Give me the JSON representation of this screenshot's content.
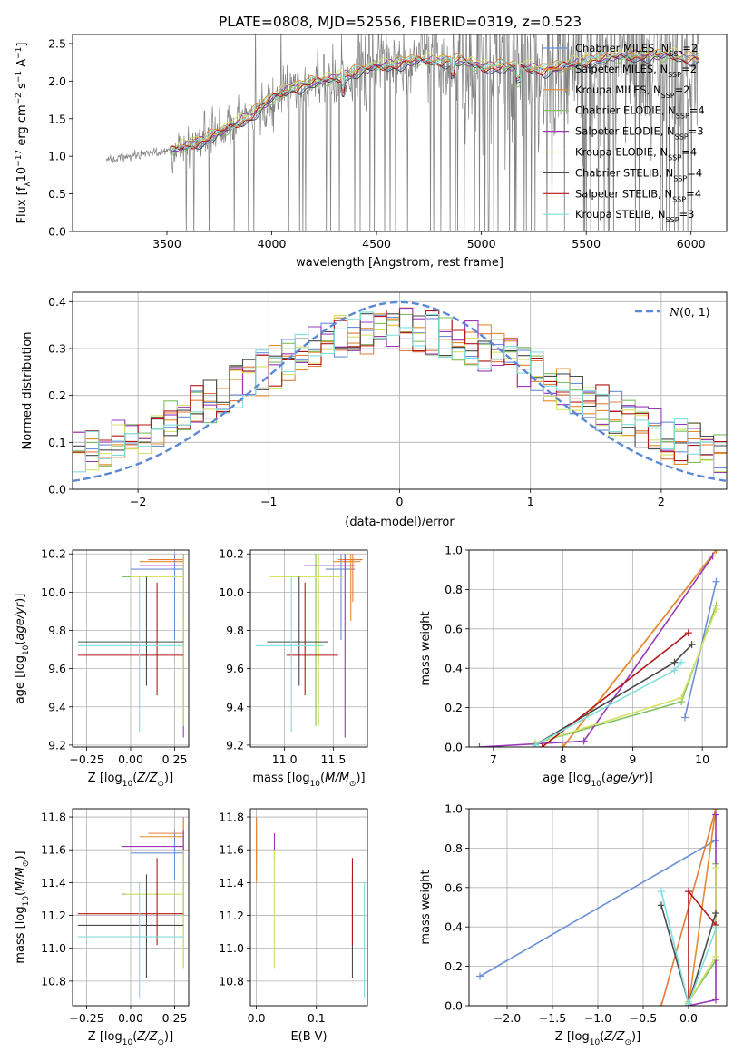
{
  "figure": {
    "title": "PLATE=0808, MJD=52556, FIBERID=0319, z=0.523"
  },
  "models": [
    {
      "name": "Chabrier MILES, N_SSP=2",
      "lib": "Chabrier MILES, N",
      "n": "=2",
      "color": "#6a8fd6"
    },
    {
      "name": "Salpeter MILES, N_SSP=2",
      "lib": "Salpeter MILES, N",
      "n": "=2",
      "color": "#e47b3c"
    },
    {
      "name": "Kroupa MILES, N_SSP=2",
      "lib": "Kroupa MILES, N",
      "n": "=2",
      "color": "#e48b2c"
    },
    {
      "name": "Chabrier ELODIE, N_SSP=4",
      "lib": "Chabrier ELODIE, N",
      "n": "=4",
      "color": "#7fbf5f"
    },
    {
      "name": "Salpeter ELODIE, N_SSP=3",
      "lib": "Salpeter ELODIE, N",
      "n": "=3",
      "color": "#9a38b8"
    },
    {
      "name": "Kroupa ELODIE, N_SSP=4",
      "lib": "Kroupa ELODIE, N",
      "n": "=4",
      "color": "#d6e26a"
    },
    {
      "name": "Chabrier STELIB, N_SSP=4",
      "lib": "Chabrier STELIB, N",
      "n": "=4",
      "color": "#4a4a4a"
    },
    {
      "name": "Salpeter STELIB, N_SSP=4",
      "lib": "Salpeter STELIB, N",
      "n": "=4",
      "color": "#b01818"
    },
    {
      "name": "Kroupa STELIB, N_SSP=3",
      "lib": "Kroupa STELIB, N",
      "n": "=3",
      "color": "#80dede"
    }
  ],
  "legend_sub": "SSP",
  "chart_data": [
    {
      "id": "spectrum",
      "type": "line",
      "xlabel": "wavelength [Angstrom, rest frame]",
      "ylabel": "Flux [f_λ 10^-17 erg cm^-2 s^-1 A^-1]",
      "xlim": [
        3050,
        6170
      ],
      "ylim": [
        0,
        2.62
      ],
      "xticks": [
        3500,
        4000,
        4500,
        5000,
        5500,
        6000
      ],
      "yticks": [
        0.0,
        0.5,
        1.0,
        1.5,
        2.0,
        2.5
      ],
      "data_color": "#808080",
      "data_range": [
        3210,
        6040
      ],
      "model_start": 3520,
      "continuum_points": [
        [
          3210,
          0.95
        ],
        [
          3400,
          1.03
        ],
        [
          3520,
          1.08
        ],
        [
          3700,
          1.25
        ],
        [
          3900,
          1.55
        ],
        [
          4000,
          1.78
        ],
        [
          4100,
          1.92
        ],
        [
          4300,
          2.05
        ],
        [
          4500,
          2.2
        ],
        [
          4700,
          2.28
        ],
        [
          4900,
          2.28
        ],
        [
          5000,
          2.2
        ],
        [
          5200,
          2.2
        ],
        [
          5300,
          2.15
        ],
        [
          5500,
          2.28
        ],
        [
          5700,
          2.35
        ],
        [
          5900,
          2.35
        ],
        [
          6040,
          2.3
        ]
      ],
      "grid": false,
      "legend": "top-right"
    },
    {
      "id": "residuals",
      "type": "step",
      "xlabel": "(data-model)/error",
      "ylabel": "Normed distribution",
      "xlim": [
        -2.5,
        2.5
      ],
      "ylim": [
        0,
        0.42
      ],
      "xticks": [
        -2,
        -1,
        0,
        1,
        2
      ],
      "yticks": [
        0.0,
        0.1,
        0.2,
        0.3,
        0.4
      ],
      "bins": 50,
      "gaussian": {
        "label": "N(0,1)",
        "mean": 0,
        "sigma": 1,
        "color": "#5b88d6"
      },
      "grid": true,
      "legend": "top-right"
    },
    {
      "id": "age_vs_Z",
      "type": "errorbar",
      "xlabel": "Z [log10(Z/Z⊙)]",
      "ylabel": "age  [log10(age/yr)]",
      "xlim": [
        -0.33,
        0.33
      ],
      "ylim": [
        9.19,
        10.22
      ],
      "xticks": [
        -0.25,
        0.0,
        0.25
      ],
      "xticklabels": [
        "−0.25",
        "0.00",
        "0.25"
      ],
      "yticks": [
        9.2,
        9.4,
        9.6,
        9.8,
        10.0,
        10.2
      ],
      "points": [
        {
          "model": 0,
          "x": 0.25,
          "y": 10.12,
          "xmin": 0.0,
          "xmax": 0.3,
          "ymin": 9.75,
          "ymax": 10.2
        },
        {
          "model": 1,
          "x": 0.3,
          "y": 10.17,
          "xmin": 0.1,
          "xmax": 0.3,
          "ymin": 9.95,
          "ymax": 10.2
        },
        {
          "model": 2,
          "x": 0.3,
          "y": 10.16,
          "xmin": 0.05,
          "xmax": 0.3,
          "ymin": 9.85,
          "ymax": 10.2
        },
        {
          "model": 3,
          "x": 0.3,
          "y": 10.08,
          "xmin": -0.05,
          "xmax": 0.3,
          "ymin": 9.3,
          "ymax": 10.2
        },
        {
          "model": 4,
          "x": 0.3,
          "y": 10.14,
          "xmin": 0.05,
          "xmax": 0.3,
          "ymin": 9.24,
          "ymax": 10.2
        },
        {
          "model": 5,
          "x": 0.3,
          "y": 10.08,
          "xmin": 0.0,
          "xmax": 0.3,
          "ymin": 9.3,
          "ymax": 10.2
        },
        {
          "model": 6,
          "x": 0.09,
          "y": 9.74,
          "xmin": -0.3,
          "xmax": 0.3,
          "ymin": 9.51,
          "ymax": 10.08
        },
        {
          "model": 7,
          "x": 0.15,
          "y": 9.67,
          "xmin": -0.3,
          "xmax": 0.3,
          "ymin": 9.46,
          "ymax": 10.05
        },
        {
          "model": 8,
          "x": 0.05,
          "y": 9.72,
          "xmin": -0.3,
          "xmax": 0.3,
          "ymin": 9.27,
          "ymax": 10.08
        }
      ],
      "grid": true
    },
    {
      "id": "age_vs_mass",
      "type": "errorbar",
      "xlabel": "mass [log10(M/M⊙)]",
      "ylabel": "",
      "xlim": [
        10.65,
        11.85
      ],
      "ylim": [
        9.19,
        10.22
      ],
      "xticks": [
        11.0,
        11.5
      ],
      "yticks": [
        9.2,
        9.4,
        9.6,
        9.8,
        10.0,
        10.2
      ],
      "points": [
        {
          "model": 0,
          "x": 11.58,
          "y": 10.12,
          "xmin": 11.42,
          "xmax": 11.72,
          "ymin": 9.75,
          "ymax": 10.2
        },
        {
          "model": 1,
          "x": 11.7,
          "y": 10.17,
          "xmin": 11.55,
          "xmax": 11.8,
          "ymin": 9.95,
          "ymax": 10.2
        },
        {
          "model": 2,
          "x": 11.68,
          "y": 10.16,
          "xmin": 11.5,
          "xmax": 11.78,
          "ymin": 9.85,
          "ymax": 10.2
        },
        {
          "model": 3,
          "x": 11.32,
          "y": 10.08,
          "xmin": 10.85,
          "xmax": 11.6,
          "ymin": 9.3,
          "ymax": 10.2
        },
        {
          "model": 4,
          "x": 11.62,
          "y": 10.14,
          "xmin": 11.2,
          "xmax": 11.72,
          "ymin": 9.24,
          "ymax": 10.2
        },
        {
          "model": 5,
          "x": 11.35,
          "y": 10.08,
          "xmin": 10.85,
          "xmax": 11.6,
          "ymin": 9.3,
          "ymax": 10.2
        },
        {
          "model": 6,
          "x": 11.15,
          "y": 9.74,
          "xmin": 10.82,
          "xmax": 11.45,
          "ymin": 9.51,
          "ymax": 10.08
        },
        {
          "model": 7,
          "x": 11.21,
          "y": 9.67,
          "xmin": 11.02,
          "xmax": 11.55,
          "ymin": 9.46,
          "ymax": 10.05
        },
        {
          "model": 8,
          "x": 11.07,
          "y": 9.72,
          "xmin": 10.7,
          "xmax": 11.4,
          "ymin": 9.27,
          "ymax": 10.08
        }
      ],
      "grid": true
    },
    {
      "id": "mass_weight_vs_age",
      "type": "line",
      "xlabel": "age  [log10(age/yr)]",
      "ylabel": "mass weight",
      "xlim": [
        6.65,
        10.35
      ],
      "ylim": [
        0,
        1.0
      ],
      "xticks": [
        7,
        8,
        9,
        10
      ],
      "yticks": [
        0.0,
        0.2,
        0.4,
        0.6,
        0.8,
        1.0
      ],
      "series": [
        {
          "model": 0,
          "points": [
            [
              9.75,
              0.15
            ],
            [
              10.2,
              0.84
            ]
          ]
        },
        {
          "model": 1,
          "points": [
            [
              8.0,
              0.0
            ],
            [
              10.2,
              1.0
            ]
          ]
        },
        {
          "model": 2,
          "points": [
            [
              8.0,
              0.0
            ],
            [
              10.2,
              1.0
            ]
          ]
        },
        {
          "model": 3,
          "points": [
            [
              7.6,
              0.02
            ],
            [
              9.7,
              0.23
            ],
            [
              10.2,
              0.72
            ]
          ]
        },
        {
          "model": 4,
          "points": [
            [
              6.8,
              0.0
            ],
            [
              8.3,
              0.03
            ],
            [
              10.15,
              0.97
            ]
          ]
        },
        {
          "model": 5,
          "points": [
            [
              7.6,
              0.02
            ],
            [
              9.7,
              0.25
            ],
            [
              10.2,
              0.7
            ]
          ]
        },
        {
          "model": 6,
          "points": [
            [
              7.6,
              0.01
            ],
            [
              9.6,
              0.43
            ],
            [
              9.85,
              0.52
            ]
          ]
        },
        {
          "model": 7,
          "points": [
            [
              7.7,
              0.0
            ],
            [
              9.8,
              0.58
            ]
          ]
        },
        {
          "model": 8,
          "points": [
            [
              7.6,
              0.01
            ],
            [
              9.6,
              0.39
            ],
            [
              9.7,
              0.43
            ]
          ]
        }
      ],
      "grid": true
    },
    {
      "id": "mass_vs_Z",
      "type": "errorbar",
      "xlabel": "Z [log10(Z/Z⊙)]",
      "ylabel": "mass [log10(M/M⊙)]",
      "xlim": [
        -0.33,
        0.33
      ],
      "ylim": [
        10.65,
        11.85
      ],
      "xticks": [
        -0.25,
        0.0,
        0.25
      ],
      "xticklabels": [
        "−0.25",
        "0.00",
        "0.25"
      ],
      "yticks": [
        10.8,
        11.0,
        11.2,
        11.4,
        11.6,
        11.8
      ],
      "points": [
        {
          "model": 0,
          "x": 0.25,
          "y": 11.58,
          "xmin": 0.0,
          "xmax": 0.3,
          "ymin": 11.42,
          "ymax": 11.72
        },
        {
          "model": 1,
          "x": 0.3,
          "y": 11.7,
          "xmin": 0.1,
          "xmax": 0.3,
          "ymin": 11.55,
          "ymax": 11.8
        },
        {
          "model": 2,
          "x": 0.3,
          "y": 11.68,
          "xmin": 0.05,
          "xmax": 0.3,
          "ymin": 11.5,
          "ymax": 11.78
        },
        {
          "model": 3,
          "x": 0.3,
          "y": 11.33,
          "xmin": -0.05,
          "xmax": 0.3,
          "ymin": 10.88,
          "ymax": 11.6
        },
        {
          "model": 4,
          "x": 0.3,
          "y": 11.62,
          "xmin": -0.05,
          "xmax": 0.3,
          "ymin": 11.2,
          "ymax": 11.72
        },
        {
          "model": 5,
          "x": 0.3,
          "y": 11.33,
          "xmin": -0.03,
          "xmax": 0.3,
          "ymin": 10.88,
          "ymax": 11.6
        },
        {
          "model": 6,
          "x": 0.09,
          "y": 11.14,
          "xmin": -0.3,
          "xmax": 0.3,
          "ymin": 10.82,
          "ymax": 11.45
        },
        {
          "model": 7,
          "x": 0.15,
          "y": 11.21,
          "xmin": -0.3,
          "xmax": 0.3,
          "ymin": 11.02,
          "ymax": 11.55
        },
        {
          "model": 8,
          "x": 0.05,
          "y": 11.07,
          "xmin": -0.3,
          "xmax": 0.3,
          "ymin": 10.7,
          "ymax": 11.4
        }
      ],
      "grid": true
    },
    {
      "id": "mass_vs_ebv",
      "type": "errorbar",
      "xlabel": "E(B-V)",
      "ylabel": "",
      "xlim": [
        -0.01,
        0.185
      ],
      "ylim": [
        10.65,
        11.85
      ],
      "xticks": [
        0.0,
        0.1
      ],
      "yticks": [
        10.8,
        11.0,
        11.2,
        11.4,
        11.6,
        11.8
      ],
      "points": [
        {
          "model": 0,
          "x": 0.0,
          "y": 11.58,
          "ymin": 11.42,
          "ymax": 11.72
        },
        {
          "model": 1,
          "x": 0.0,
          "y": 11.7,
          "ymin": 11.55,
          "ymax": 11.8
        },
        {
          "model": 2,
          "x": 0.0,
          "y": 11.68,
          "ymin": 11.4,
          "ymax": 11.78
        },
        {
          "model": 3,
          "x": 0.03,
          "y": 11.33,
          "ymin": 10.88,
          "ymax": 11.6
        },
        {
          "model": 4,
          "x": 0.03,
          "y": 11.62,
          "ymin": 11.55,
          "ymax": 11.7
        },
        {
          "model": 5,
          "x": 0.03,
          "y": 11.33,
          "ymin": 10.88,
          "ymax": 11.6
        },
        {
          "model": 6,
          "x": 0.16,
          "y": 11.14,
          "ymin": 10.82,
          "ymax": 11.45
        },
        {
          "model": 7,
          "x": 0.16,
          "y": 11.21,
          "ymin": 11.02,
          "ymax": 11.55
        },
        {
          "model": 8,
          "x": 0.18,
          "y": 11.07,
          "ymin": 10.7,
          "ymax": 11.4
        }
      ],
      "grid": true
    },
    {
      "id": "mass_weight_vs_Z",
      "type": "line",
      "xlabel": "Z [log10(Z/Z⊙)]",
      "ylabel": "mass weight",
      "xlim": [
        -2.42,
        0.42
      ],
      "ylim": [
        0,
        1.0
      ],
      "xticks": [
        -2.0,
        -1.5,
        -1.0,
        -0.5,
        0.0
      ],
      "xticklabels": [
        "−2.0",
        "−1.5",
        "−1.0",
        "−0.5",
        "0.0"
      ],
      "yticks": [
        0.0,
        0.2,
        0.4,
        0.6,
        0.8,
        1.0
      ],
      "series": [
        {
          "model": 0,
          "points": [
            [
              -2.3,
              0.15
            ],
            [
              0.3,
              0.84
            ]
          ]
        },
        {
          "model": 1,
          "points": [
            [
              -0.3,
              0.0
            ],
            [
              0.3,
              1.0
            ]
          ]
        },
        {
          "model": 2,
          "points": [
            [
              0.0,
              0.0
            ],
            [
              0.3,
              1.0
            ]
          ]
        },
        {
          "model": 3,
          "points": [
            [
              0.0,
              0.02
            ],
            [
              0.3,
              0.23
            ],
            [
              0.3,
              0.72
            ]
          ]
        },
        {
          "model": 4,
          "points": [
            [
              0.0,
              0.0
            ],
            [
              0.3,
              0.03
            ],
            [
              0.3,
              0.97
            ]
          ]
        },
        {
          "model": 5,
          "points": [
            [
              0.0,
              0.02
            ],
            [
              0.3,
              0.25
            ],
            [
              0.3,
              0.7
            ]
          ]
        },
        {
          "model": 6,
          "points": [
            [
              -0.3,
              0.51
            ],
            [
              0.0,
              0.01
            ],
            [
              0.3,
              0.47
            ]
          ]
        },
        {
          "model": 7,
          "points": [
            [
              0.0,
              0.0
            ],
            [
              0.0,
              0.58
            ],
            [
              0.3,
              0.41
            ]
          ]
        },
        {
          "model": 8,
          "points": [
            [
              -0.3,
              0.58
            ],
            [
              0.0,
              0.01
            ],
            [
              0.3,
              0.39
            ]
          ]
        }
      ],
      "grid": true
    }
  ]
}
